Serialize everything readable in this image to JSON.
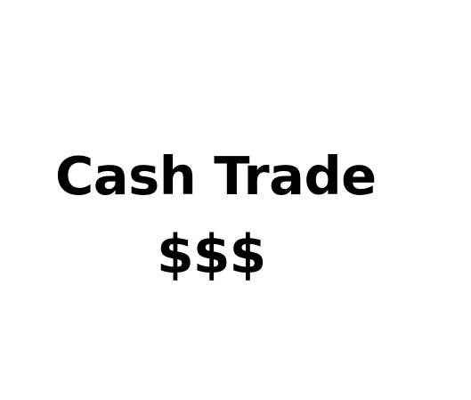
{
  "title": "Cash Trade",
  "symbols": "$$$",
  "colors": {
    "background": "#ffffff",
    "text": "#000000"
  }
}
